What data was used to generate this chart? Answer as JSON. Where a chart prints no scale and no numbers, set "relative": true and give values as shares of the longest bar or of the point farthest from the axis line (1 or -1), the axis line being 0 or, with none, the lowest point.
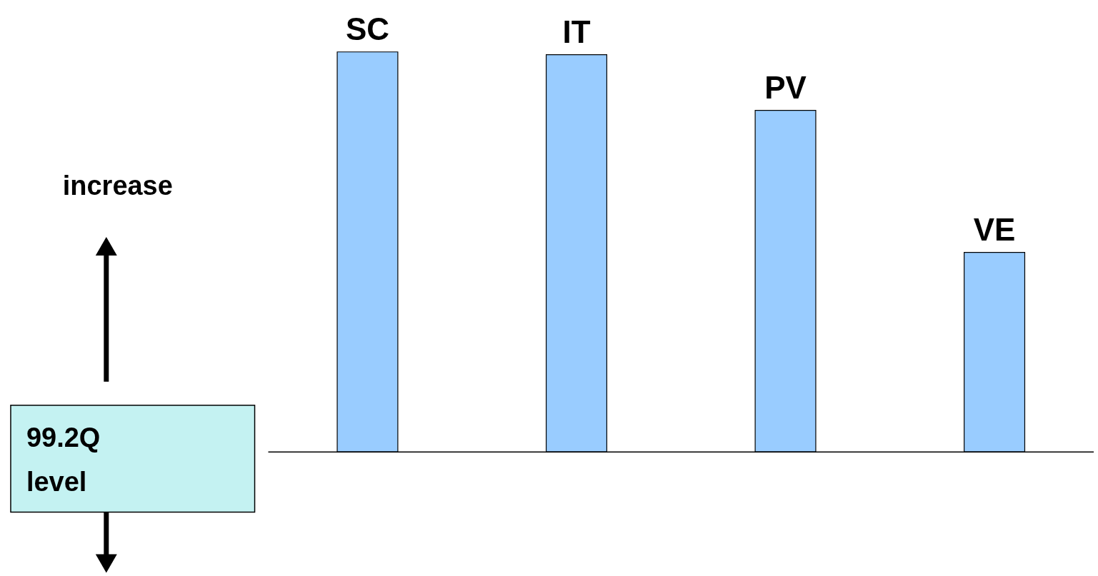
{
  "chart_data": {
    "type": "bar",
    "relative": true,
    "categories": [
      "SC",
      "IT",
      "PV",
      "VE"
    ],
    "values": [
      1,
      0.993,
      0.854,
      0.499
    ],
    "color": "#99ccff",
    "annotations": [
      "increase",
      "99.2Q level"
    ]
  }
}
